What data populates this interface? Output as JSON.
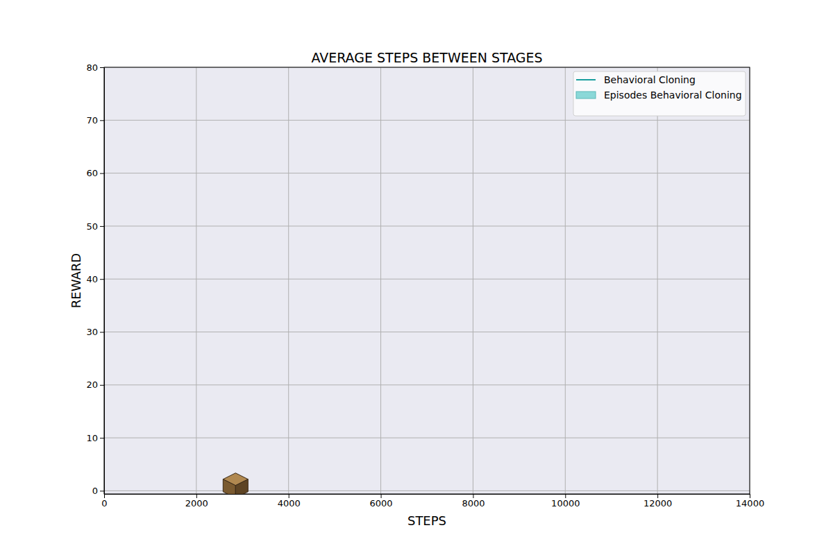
{
  "chart_data": {
    "type": "line",
    "title": "AVERAGE STEPS BETWEEN STAGES",
    "x_label": "STEPS",
    "y_label": "REWARD",
    "series": [
      {
        "name": "Behavioral Cloning",
        "type": "line",
        "color": "#1a9e9e",
        "marker": "cube",
        "x": [
          2850
        ],
        "values": [
          1
        ]
      },
      {
        "name": "Episodes Behavioral Cloning",
        "type": "area",
        "color": "#8ad8d8",
        "x": [
          2850
        ],
        "values": [
          1
        ]
      }
    ],
    "xlim": [
      0,
      14000
    ],
    "xticks": [
      0,
      2000,
      4000,
      6000,
      8000,
      10000,
      12000,
      14000
    ],
    "ylim": [
      -0.6,
      80
    ],
    "yticks": [
      0,
      10,
      20,
      30,
      40,
      50,
      60,
      70,
      80
    ],
    "grid": true,
    "legend": "upper right"
  }
}
